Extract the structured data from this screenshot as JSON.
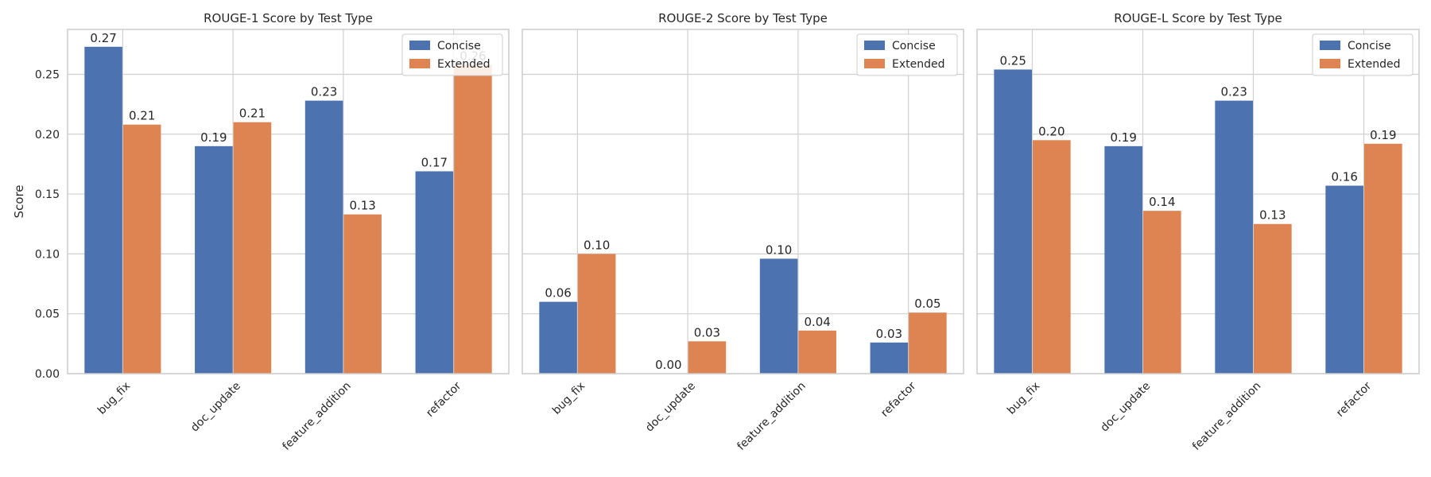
{
  "chart_data": [
    {
      "type": "bar",
      "title": "ROUGE-1 Score by Test Type",
      "xlabel": "",
      "ylabel": "Score",
      "ylim": [
        0,
        0.2875
      ],
      "yticks": [
        "0.00",
        "0.05",
        "0.10",
        "0.15",
        "0.20",
        "0.25"
      ],
      "categories": [
        "bug_fix",
        "doc_update",
        "feature_addition",
        "refactor"
      ],
      "series": [
        {
          "name": "Concise",
          "values": [
            0.273,
            0.19,
            0.228,
            0.169
          ],
          "labels": [
            "0.27",
            "0.19",
            "0.23",
            "0.17"
          ]
        },
        {
          "name": "Extended",
          "values": [
            0.208,
            0.21,
            0.133,
            0.258
          ],
          "labels": [
            "0.21",
            "0.21",
            "0.13",
            "0.26"
          ]
        }
      ],
      "legend": "top-right",
      "grid": true
    },
    {
      "type": "bar",
      "title": "ROUGE-2 Score by Test Type",
      "xlabel": "",
      "ylabel": "",
      "ylim": [
        0,
        0.2875
      ],
      "yticks": [],
      "categories": [
        "bug_fix",
        "doc_update",
        "feature_addition",
        "refactor"
      ],
      "series": [
        {
          "name": "Concise",
          "values": [
            0.06,
            0.0,
            0.096,
            0.026
          ],
          "labels": [
            "0.06",
            "0.00",
            "0.10",
            "0.03"
          ]
        },
        {
          "name": "Extended",
          "values": [
            0.1,
            0.027,
            0.036,
            0.051
          ],
          "labels": [
            "0.10",
            "0.03",
            "0.04",
            "0.05"
          ]
        }
      ],
      "legend": "top-right",
      "grid": true
    },
    {
      "type": "bar",
      "title": "ROUGE-L Score by Test Type",
      "xlabel": "",
      "ylabel": "",
      "ylim": [
        0,
        0.2875
      ],
      "yticks": [],
      "categories": [
        "bug_fix",
        "doc_update",
        "feature_addition",
        "refactor"
      ],
      "series": [
        {
          "name": "Concise",
          "values": [
            0.254,
            0.19,
            0.228,
            0.157
          ],
          "labels": [
            "0.25",
            "0.19",
            "0.23",
            "0.16"
          ]
        },
        {
          "name": "Extended",
          "values": [
            0.195,
            0.136,
            0.125,
            0.192
          ],
          "labels": [
            "0.20",
            "0.14",
            "0.13",
            "0.19"
          ]
        }
      ],
      "legend": "top-right",
      "grid": true
    }
  ],
  "colors": {
    "concise": "#4c72b0",
    "extended": "#dd8452",
    "grid": "#d0d0d0",
    "spine": "#cccccc",
    "text": "#262626"
  }
}
